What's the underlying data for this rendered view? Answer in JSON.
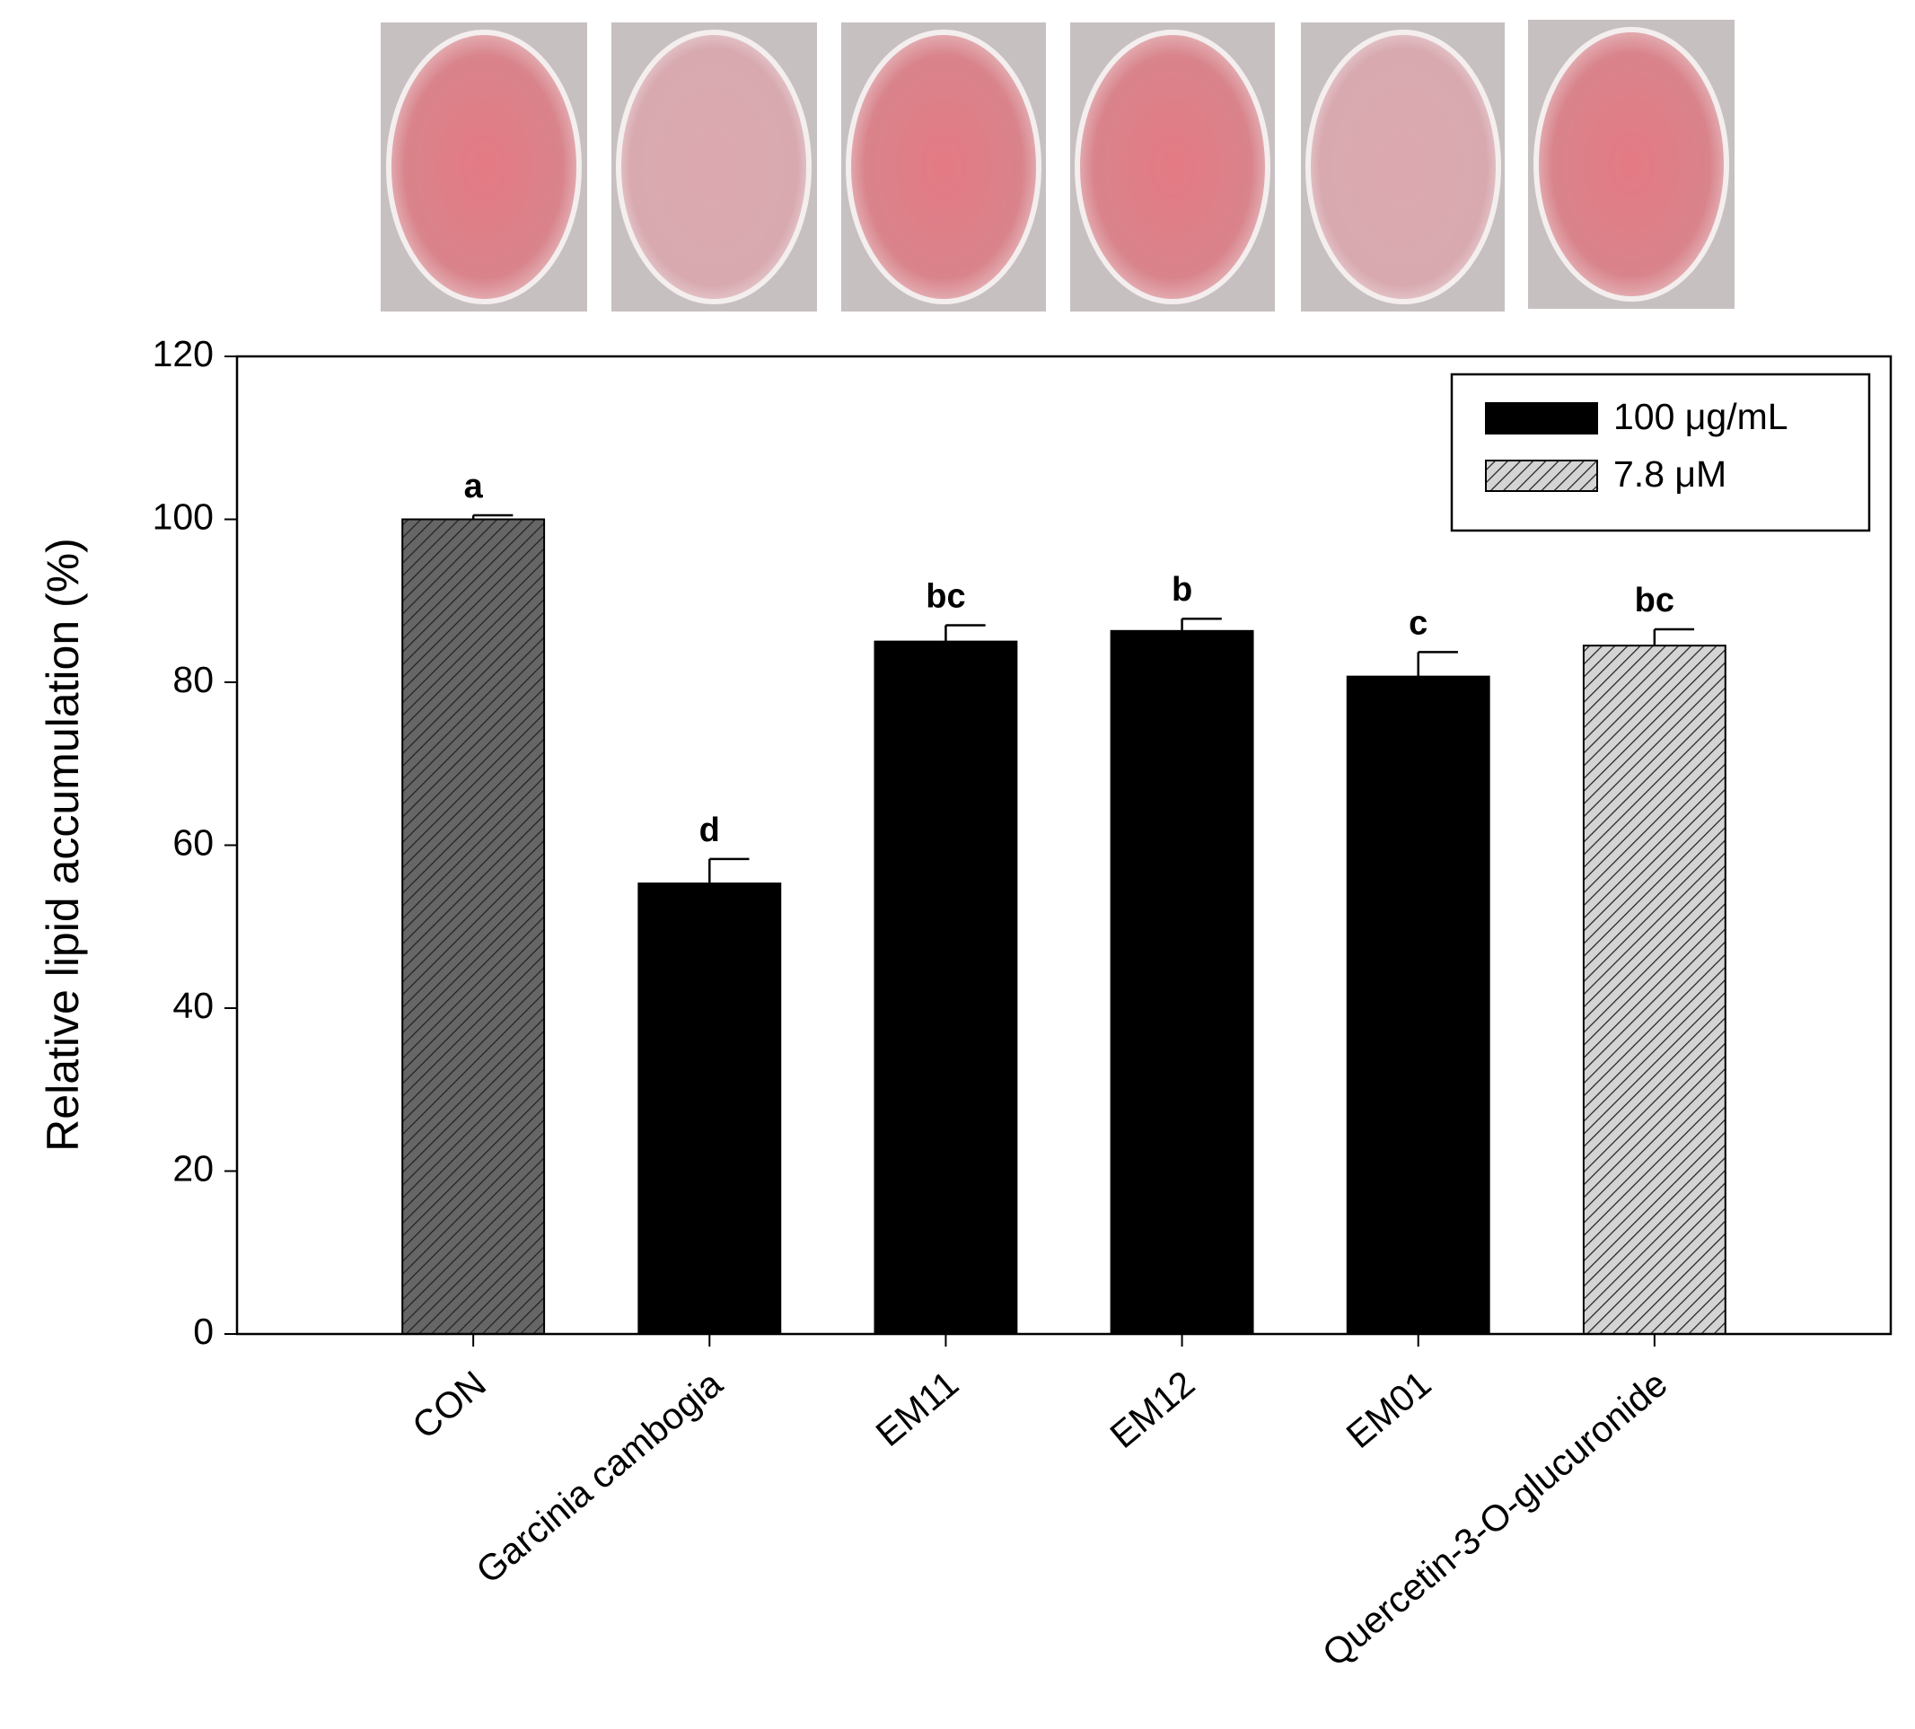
{
  "chart_data": {
    "type": "bar",
    "ylabel": "Relative lipid accumulation (%)",
    "categories": [
      "CON",
      "Garcinia cambogia",
      "EM11",
      "EM12",
      "EM01",
      "Quercetin-3-O-glucuronide"
    ],
    "values": [
      100,
      55.3,
      85,
      86.3,
      80.7,
      84.5
    ],
    "errors": [
      0.5,
      3,
      2,
      1.5,
      3,
      2
    ],
    "value_labels": [
      "a",
      "d",
      "bc",
      "b",
      "c",
      "bc"
    ],
    "colors": [
      "#666666",
      "#000000",
      "#000000",
      "#000000",
      "#000000",
      "#d4d4d4"
    ],
    "hatch": [
      true,
      false,
      false,
      false,
      false,
      true
    ],
    "legend": [
      {
        "name": "100 μg/mL",
        "color": "#000000",
        "hatch": false
      },
      {
        "name": "7.8 μM",
        "color": "#d4d4d4",
        "hatch": true
      }
    ],
    "legend_position": "upper right",
    "ylim": [
      0,
      120
    ],
    "yticks": [
      0,
      20,
      40,
      60,
      80,
      100,
      120
    ]
  }
}
